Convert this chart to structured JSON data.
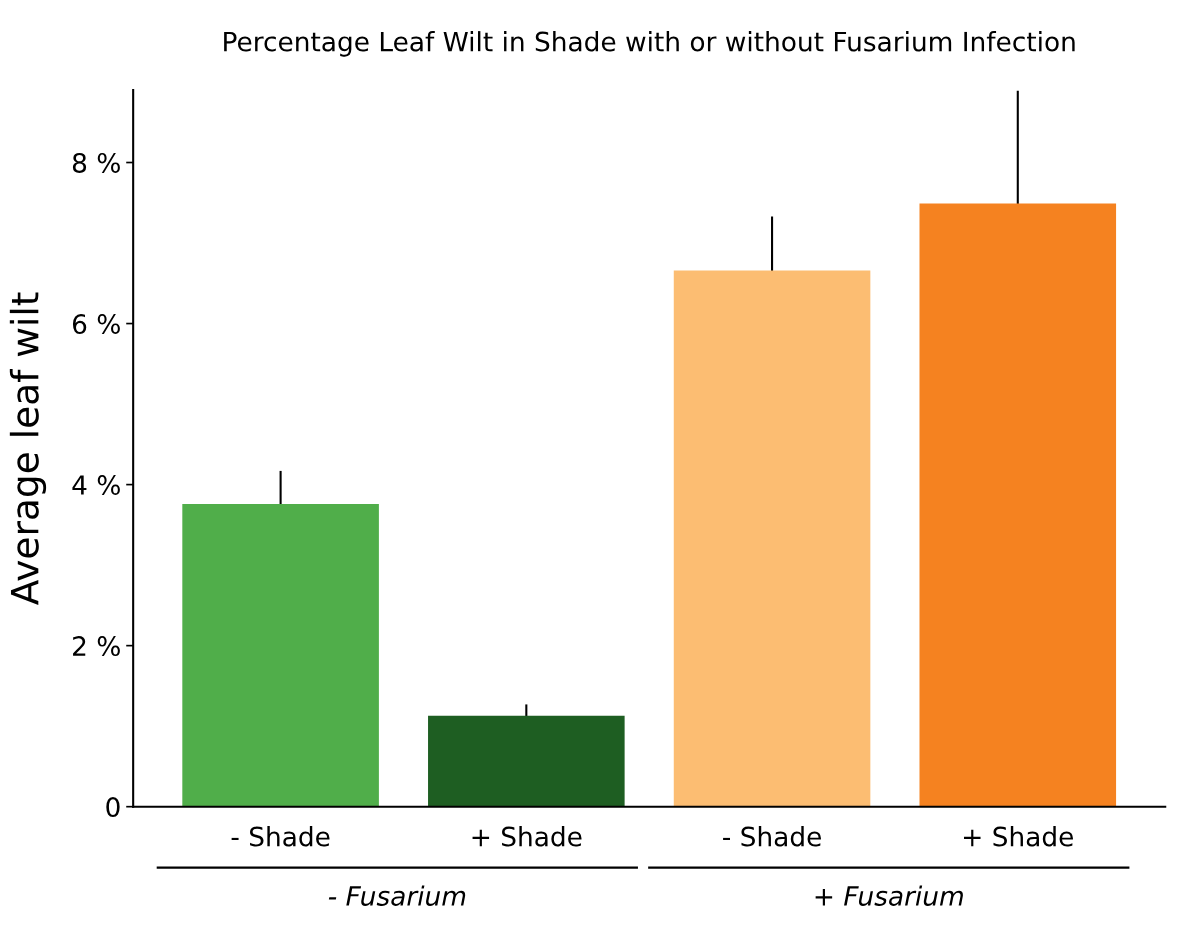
{
  "chart_data": {
    "type": "bar",
    "title": "Percentage Leaf Wilt in Shade with or without Fusarium Infection",
    "ylabel": "Average leaf wilt",
    "categories": [
      "- Shade",
      "+ Shade",
      "- Shade",
      "+ Shade"
    ],
    "values": [
      3.76,
      1.13,
      6.66,
      7.49
    ],
    "errors": [
      0.41,
      0.14,
      0.67,
      1.4
    ],
    "colors": [
      "#50ae4a",
      "#1e5e22",
      "#fcbd72",
      "#f58220"
    ],
    "ylim": [
      0,
      8.9
    ],
    "yticks": [
      0,
      {
        "value": 2,
        "label": "2 %"
      },
      {
        "value": 4,
        "label": "4 %"
      },
      {
        "value": 6,
        "label": "6 %"
      },
      {
        "value": 8,
        "label": "8 %"
      }
    ],
    "annotations": [
      "- Fusarium",
      "+ Fusarium"
    ],
    "grid": false,
    "legend": false
  }
}
